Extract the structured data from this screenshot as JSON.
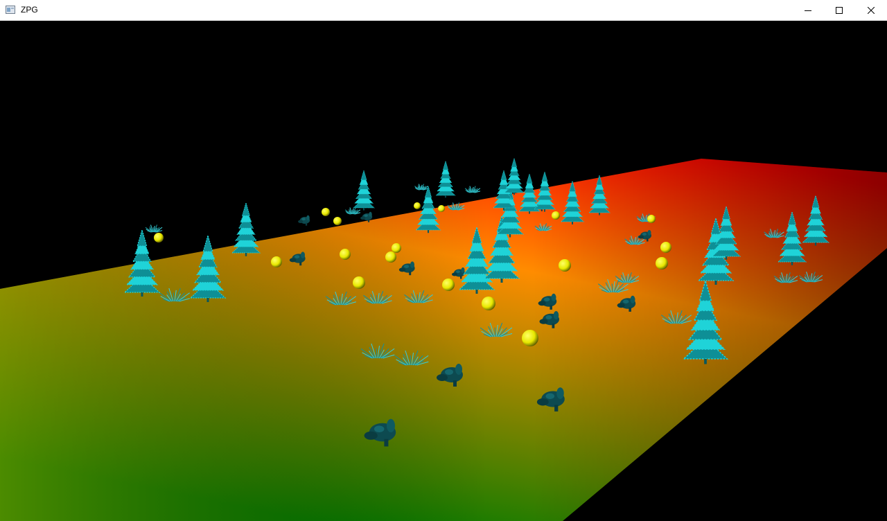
{
  "window": {
    "title": "ZPG",
    "controls": [
      "minimize",
      "maximize",
      "close"
    ]
  },
  "scene": {
    "background_color": "#000000",
    "ground_gradient": {
      "far_color": "#ff0000",
      "mid_color": "#ff8c00",
      "near_color": "#007a00",
      "left_color": "#8a9a00"
    },
    "tree_color": "#1fd3d8",
    "bush_color": "#39c9d2",
    "sphere_color": "#e8e800",
    "bunny_color": "#0d4a50",
    "tree_icon": "pine-tree",
    "bush_icon": "grass-bush",
    "sphere_icon": "yellow-sphere",
    "bunny_icon": "bunny-model"
  }
}
